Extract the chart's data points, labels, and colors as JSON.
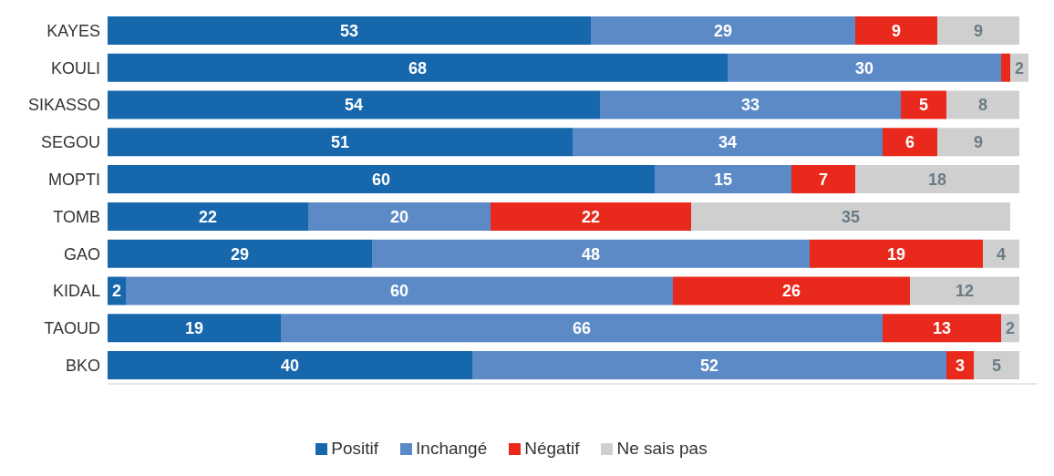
{
  "chart_data": {
    "type": "bar",
    "orientation": "horizontal",
    "stacked": true,
    "categories": [
      "KAYES",
      "KOULI",
      "SIKASSO",
      "SEGOU",
      "MOPTI",
      "TOMB",
      "GAO",
      "KIDAL",
      "TAOUD",
      "BKO"
    ],
    "series": [
      {
        "name": "Positif",
        "color": "#1667ac",
        "values": [
          53,
          68,
          54,
          51,
          60,
          22,
          29,
          2,
          19,
          40
        ],
        "value_labels": [
          "53",
          "68",
          "54",
          "51",
          "60",
          "22",
          "29",
          "2",
          "19",
          "40"
        ]
      },
      {
        "name": "Inchangé",
        "color": "#5b8ac6",
        "values": [
          29,
          30,
          33,
          34,
          15,
          20,
          48,
          60,
          66,
          52
        ],
        "value_labels": [
          "29",
          "30",
          "33",
          "34",
          "15",
          "20",
          "48",
          "60",
          "66",
          "52"
        ]
      },
      {
        "name": "Négatif",
        "color": "#e8291c",
        "values": [
          9,
          1,
          5,
          6,
          7,
          22,
          19,
          26,
          13,
          3
        ],
        "value_labels": [
          "9",
          null,
          "5",
          "6",
          "7",
          "22",
          "19",
          "26",
          "13",
          "3"
        ]
      },
      {
        "name": "Ne sais pas",
        "color": "#cfcfcf",
        "values": [
          9,
          2,
          8,
          9,
          18,
          35,
          4,
          12,
          2,
          5
        ],
        "value_labels": [
          "9",
          "2",
          "8",
          "9",
          "18",
          "35",
          "4",
          "12",
          "2",
          "5"
        ]
      }
    ],
    "xlim": [
      0,
      102
    ],
    "tick_labels": "y",
    "legend": "bottom"
  }
}
